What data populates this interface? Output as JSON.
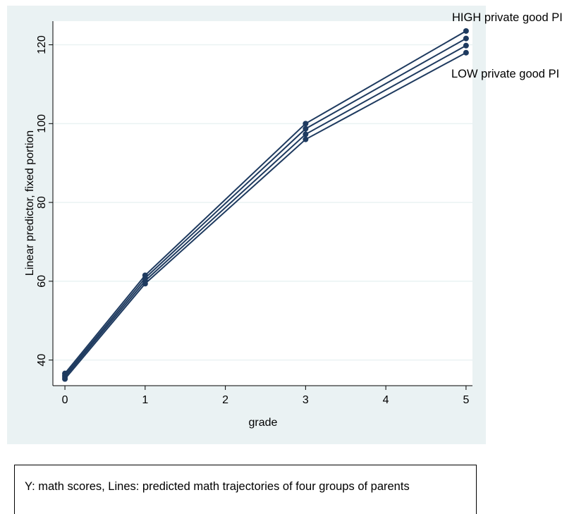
{
  "chart_data": {
    "type": "line",
    "x": [
      0,
      1,
      3,
      5
    ],
    "xlabel": "grade",
    "ylabel": "Linear predictor, fixed portion",
    "xticks": [
      0,
      1,
      2,
      3,
      4,
      5
    ],
    "yticks": [
      40,
      60,
      80,
      100,
      120
    ],
    "xlim": [
      -0.15,
      5.08
    ],
    "ylim": [
      33.5,
      126
    ],
    "grid": true,
    "legend": "none",
    "series": [
      {
        "values": [
          36.6,
          61.5,
          100.0,
          123.5
        ]
      },
      {
        "values": [
          36.1,
          60.8,
          98.7,
          121.6
        ]
      },
      {
        "values": [
          35.7,
          60.1,
          97.3,
          119.8
        ]
      },
      {
        "values": [
          35.2,
          59.4,
          96.0,
          118.0
        ]
      }
    ],
    "annotations": {
      "high": "HIGH private good PI",
      "low": "LOW private good PI"
    },
    "line_color": "#1e3a5f",
    "background_color": "#eaf2f3",
    "plot_background_color": "#ffffff"
  },
  "caption": "Y: math scores,  Lines: predicted math trajectories of four groups of parents"
}
